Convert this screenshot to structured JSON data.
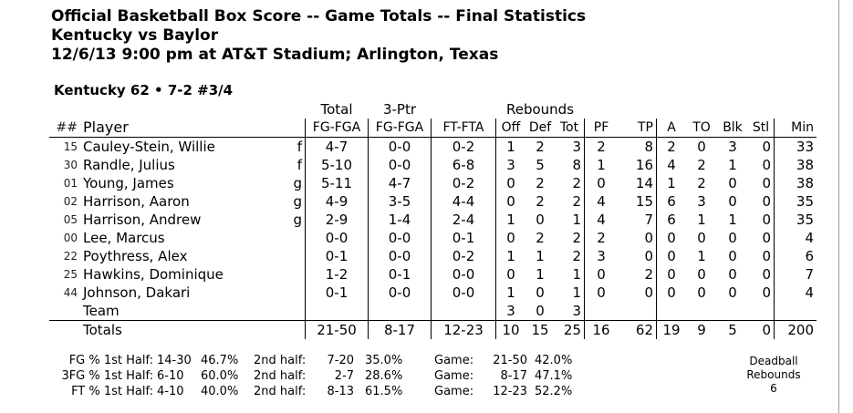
{
  "header": {
    "line1": "Official Basketball Box Score -- Game Totals -- Final Statistics",
    "line2": "Kentucky vs Baylor",
    "line3": "12/6/13 9:00 pm at AT&T Stadium; Arlington, Texas"
  },
  "team_line": "Kentucky 62 • 7-2  #3/4",
  "columns": {
    "group_total": "Total",
    "group_3ptr": "3-Ptr",
    "group_rebounds": "Rebounds",
    "num": "##",
    "player": "Player",
    "fg": "FG-FGA",
    "tp3": "FG-FGA",
    "ft": "FT-FTA",
    "off": "Off",
    "def": "Def",
    "tot": "Tot",
    "pf": "PF",
    "tp": "TP",
    "a": "A",
    "to": "TO",
    "blk": "Blk",
    "stl": "Stl",
    "min": "Min"
  },
  "players": [
    {
      "num": "15",
      "name": "Cauley-Stein, Willie",
      "pos": "f",
      "fg": "4-7",
      "tp3": "0-0",
      "ft": "0-2",
      "off": "1",
      "def": "2",
      "tot": "3",
      "pf": "2",
      "tp": "8",
      "a": "2",
      "to": "0",
      "blk": "3",
      "stl": "0",
      "min": "33"
    },
    {
      "num": "30",
      "name": "Randle, Julius",
      "pos": "f",
      "fg": "5-10",
      "tp3": "0-0",
      "ft": "6-8",
      "off": "3",
      "def": "5",
      "tot": "8",
      "pf": "1",
      "tp": "16",
      "a": "4",
      "to": "2",
      "blk": "1",
      "stl": "0",
      "min": "38"
    },
    {
      "num": "01",
      "name": "Young, James",
      "pos": "g",
      "fg": "5-11",
      "tp3": "4-7",
      "ft": "0-2",
      "off": "0",
      "def": "2",
      "tot": "2",
      "pf": "0",
      "tp": "14",
      "a": "1",
      "to": "2",
      "blk": "0",
      "stl": "0",
      "min": "38"
    },
    {
      "num": "02",
      "name": "Harrison, Aaron",
      "pos": "g",
      "fg": "4-9",
      "tp3": "3-5",
      "ft": "4-4",
      "off": "0",
      "def": "2",
      "tot": "2",
      "pf": "4",
      "tp": "15",
      "a": "6",
      "to": "3",
      "blk": "0",
      "stl": "0",
      "min": "35"
    },
    {
      "num": "05",
      "name": "Harrison, Andrew",
      "pos": "g",
      "fg": "2-9",
      "tp3": "1-4",
      "ft": "2-4",
      "off": "1",
      "def": "0",
      "tot": "1",
      "pf": "4",
      "tp": "7",
      "a": "6",
      "to": "1",
      "blk": "1",
      "stl": "0",
      "min": "35"
    },
    {
      "num": "00",
      "name": "Lee, Marcus",
      "pos": "",
      "fg": "0-0",
      "tp3": "0-0",
      "ft": "0-1",
      "off": "0",
      "def": "2",
      "tot": "2",
      "pf": "2",
      "tp": "0",
      "a": "0",
      "to": "0",
      "blk": "0",
      "stl": "0",
      "min": "4"
    },
    {
      "num": "22",
      "name": "Poythress, Alex",
      "pos": "",
      "fg": "0-1",
      "tp3": "0-0",
      "ft": "0-2",
      "off": "1",
      "def": "1",
      "tot": "2",
      "pf": "3",
      "tp": "0",
      "a": "0",
      "to": "1",
      "blk": "0",
      "stl": "0",
      "min": "6"
    },
    {
      "num": "25",
      "name": "Hawkins, Dominique",
      "pos": "",
      "fg": "1-2",
      "tp3": "0-1",
      "ft": "0-0",
      "off": "0",
      "def": "1",
      "tot": "1",
      "pf": "0",
      "tp": "2",
      "a": "0",
      "to": "0",
      "blk": "0",
      "stl": "0",
      "min": "7"
    },
    {
      "num": "44",
      "name": "Johnson, Dakari",
      "pos": "",
      "fg": "0-1",
      "tp3": "0-0",
      "ft": "0-0",
      "off": "1",
      "def": "0",
      "tot": "1",
      "pf": "0",
      "tp": "0",
      "a": "0",
      "to": "0",
      "blk": "0",
      "stl": "0",
      "min": "4"
    }
  ],
  "team_row": {
    "name": "Team",
    "off": "3",
    "def": "0",
    "tot": "3"
  },
  "totals": {
    "label": "Totals",
    "fg": "21-50",
    "tp3": "8-17",
    "ft": "12-23",
    "off": "10",
    "def": "15",
    "tot": "25",
    "pf": "16",
    "tp": "62",
    "a": "19",
    "to": "9",
    "blk": "5",
    "stl": "0",
    "min": "200"
  },
  "shooting": [
    {
      "label": "FG % 1st Half:",
      "h1": "14-30",
      "h1p": "46.7%",
      "h2l": "2nd half:",
      "h2": "7-20",
      "h2p": "35.0%",
      "gl": "Game:",
      "g": "21-50",
      "gp": "42.0%"
    },
    {
      "label": "3FG % 1st Half:",
      "h1": "6-10",
      "h1p": "60.0%",
      "h2l": "2nd half:",
      "h2": "2-7",
      "h2p": "28.6%",
      "gl": "Game:",
      "g": "8-17",
      "gp": "47.1%"
    },
    {
      "label": "FT % 1st Half:",
      "h1": "4-10",
      "h1p": "40.0%",
      "h2l": "2nd half:",
      "h2": "8-13",
      "h2p": "61.5%",
      "gl": "Game:",
      "g": "12-23",
      "gp": "52.2%"
    }
  ],
  "deadball": {
    "line1": "Deadball",
    "line2": "Rebounds",
    "value": "6"
  }
}
